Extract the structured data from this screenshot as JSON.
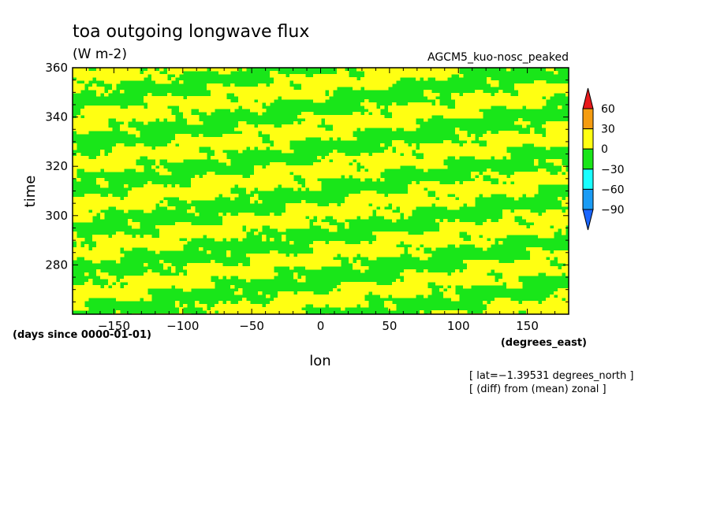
{
  "chart_data": {
    "type": "heatmap",
    "title": "toa outgoing longwave flux",
    "units": "(W m-2)",
    "model_label": "AGCM5_kuo-nosc_peaked",
    "xlabel": "lon",
    "x_units": "(degrees_east)",
    "ylabel": "time",
    "y_units": "(days since 0000-01-01)",
    "xlim": [
      -180,
      180
    ],
    "ylim": [
      260,
      360
    ],
    "x_ticks": [
      -150,
      -100,
      -50,
      0,
      50,
      100,
      150
    ],
    "x_tick_labels": [
      "−150",
      "−100",
      "−50",
      "0",
      "50",
      "100",
      "150"
    ],
    "y_ticks": [
      280,
      300,
      320,
      340,
      360
    ],
    "y_tick_labels": [
      "280",
      "300",
      "320",
      "340",
      "360"
    ],
    "notes": [
      "[ lat=−1.39531 degrees_north ]",
      "[ (diff) from (mean) zonal ]"
    ],
    "colorbar": {
      "levels": [
        60,
        30,
        0,
        -30,
        -60,
        -90
      ],
      "level_labels": [
        "60",
        "30",
        "0",
        "−30",
        "−60",
        "−90"
      ],
      "colors": {
        "above_60": "#e8191b",
        "c30_60": "#f59c10",
        "c0_30": "#ffff12",
        "cm30_0": "#19e619",
        "cm60_m30": "#19ffff",
        "cm90_m60": "#1a9cf5",
        "below_m90": "#1a66ff"
      }
    },
    "field_pattern": "Zonal anomalies oscillate between -30..0 (green) and 0..30 (yellow), appearing as streaky eastward-propagating bands over time."
  }
}
